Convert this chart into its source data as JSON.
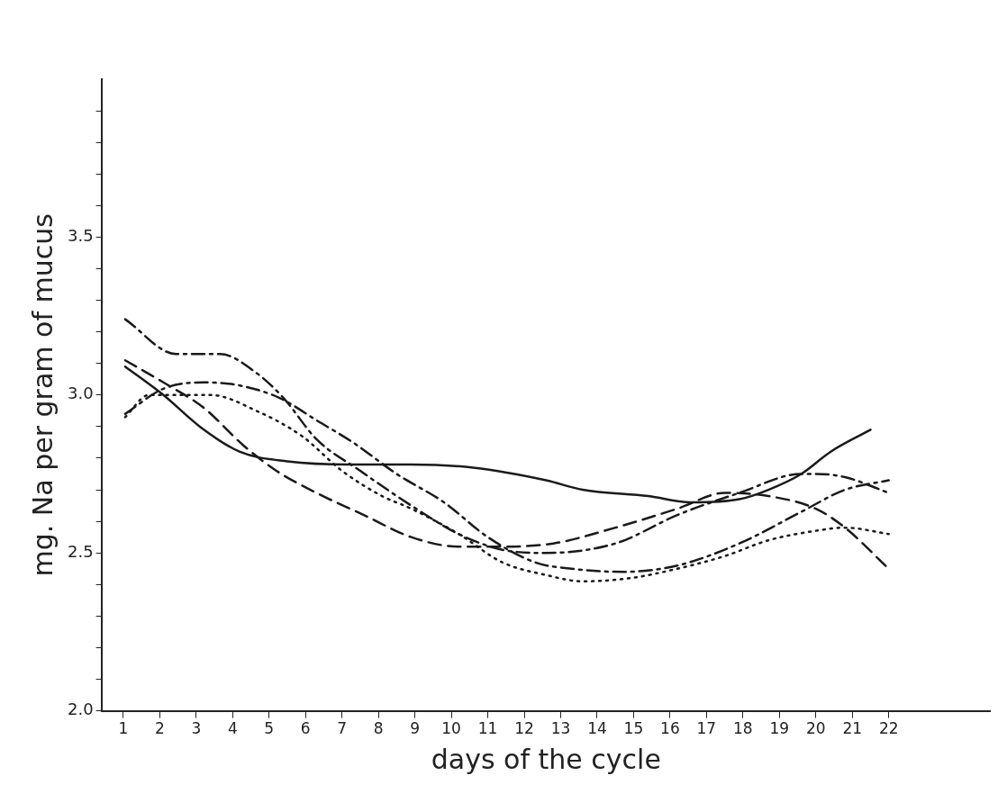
{
  "chart_data": {
    "type": "line",
    "xlabel": "days of the cycle",
    "ylabel": "mg. Na per gram of mucus",
    "xlim": [
      0.4,
      24.8
    ],
    "ylim": [
      2.0,
      4.0
    ],
    "xticks": [
      1,
      2,
      3,
      4,
      5,
      6,
      7,
      8,
      9,
      10,
      11,
      12,
      13,
      14,
      15,
      16,
      17,
      18,
      19,
      20,
      21,
      22
    ],
    "yticks": [
      {
        "value": 2.0,
        "label": "2.0"
      },
      {
        "value": 2.1,
        "label": null
      },
      {
        "value": 2.2,
        "label": null
      },
      {
        "value": 2.3,
        "label": null
      },
      {
        "value": 2.4,
        "label": null
      },
      {
        "value": 2.5,
        "label": "2.5"
      },
      {
        "value": 2.6,
        "label": null
      },
      {
        "value": 2.7,
        "label": null
      },
      {
        "value": 2.8,
        "label": null
      },
      {
        "value": 2.9,
        "label": null
      },
      {
        "value": 3.0,
        "label": "3.0"
      },
      {
        "value": 3.1,
        "label": null
      },
      {
        "value": 3.2,
        "label": null
      },
      {
        "value": 3.3,
        "label": null
      },
      {
        "value": 3.4,
        "label": null
      },
      {
        "value": 3.5,
        "label": "3.5"
      },
      {
        "value": 3.6,
        "label": null
      },
      {
        "value": 3.7,
        "label": null
      },
      {
        "value": 3.8,
        "label": null
      },
      {
        "value": 3.9,
        "label": null
      }
    ],
    "grid": false,
    "legend": false,
    "marker": "none",
    "series": [
      {
        "color": "#1a1a1a",
        "line_style": "solid",
        "x": [
          1.05,
          2.1,
          3.1,
          4.2,
          5.5,
          7.2,
          8.9,
          10.6,
          12.6,
          13.6,
          15.4,
          16.6,
          17.9,
          18.7,
          19.6,
          20.4,
          21.5
        ],
        "values": [
          3.09,
          3.0,
          2.9,
          2.82,
          2.79,
          2.78,
          2.78,
          2.77,
          2.73,
          2.7,
          2.68,
          2.66,
          2.67,
          2.7,
          2.75,
          2.82,
          2.89
        ]
      },
      {
        "color": "#1a1a1a",
        "line_style": "dashed",
        "x": [
          1.05,
          2.1,
          3.2,
          4.3,
          5.2,
          6.3,
          7.6,
          8.9,
          10.2,
          11.4,
          12.8,
          14.5,
          16.2,
          17.5,
          18.7,
          20.0,
          20.8,
          22.0
        ],
        "values": [
          3.11,
          3.04,
          2.96,
          2.84,
          2.76,
          2.69,
          2.62,
          2.55,
          2.52,
          2.52,
          2.53,
          2.58,
          2.64,
          2.69,
          2.68,
          2.64,
          2.58,
          2.45
        ]
      },
      {
        "color": "#1a1a1a",
        "line_style": "dashdot",
        "x": [
          1.05,
          2.45,
          3.65,
          4.65,
          5.4,
          6.3,
          7.5,
          8.9,
          10.2,
          11.4,
          12.6,
          14.5,
          16.2,
          17.9,
          19.6,
          20.0,
          20.8,
          22.0
        ],
        "values": [
          3.24,
          3.13,
          3.13,
          3.07,
          2.99,
          2.86,
          2.76,
          2.65,
          2.56,
          2.51,
          2.5,
          2.53,
          2.62,
          2.69,
          2.75,
          2.75,
          2.74,
          2.69
        ]
      },
      {
        "color": "#1a1a1a",
        "line_style": "dotted",
        "x": [
          1.05,
          1.7,
          2.5,
          3.4,
          4.65,
          5.9,
          7.0,
          8.1,
          8.9,
          10.2,
          11.4,
          12.6,
          13.6,
          14.9,
          16.2,
          17.5,
          18.7,
          20.0,
          20.8,
          22.0
        ],
        "values": [
          2.93,
          3.0,
          3.0,
          3.0,
          2.95,
          2.87,
          2.76,
          2.68,
          2.64,
          2.56,
          2.47,
          2.43,
          2.41,
          2.42,
          2.45,
          2.49,
          2.54,
          2.57,
          2.58,
          2.56
        ]
      },
      {
        "color": "#1a1a1a",
        "line_style": "dashdot",
        "x": [
          1.05,
          2.1,
          3.2,
          4.2,
          5.3,
          6.3,
          7.3,
          8.5,
          9.8,
          11.0,
          12.3,
          13.3,
          14.7,
          16.2,
          17.9,
          19.6,
          20.8,
          22.0
        ],
        "values": [
          2.94,
          3.02,
          3.04,
          3.03,
          2.99,
          2.92,
          2.85,
          2.75,
          2.66,
          2.55,
          2.47,
          2.45,
          2.44,
          2.46,
          2.53,
          2.63,
          2.7,
          2.73
        ]
      }
    ]
  }
}
